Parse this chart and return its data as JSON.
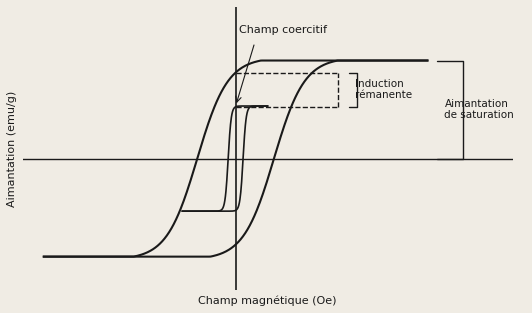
{
  "title": "",
  "xlabel": "Champ magnétique (Oe)",
  "ylabel": "Aimantation (emu/g)",
  "label_champ_coercitif": "Champ coercitif",
  "label_induction": "Induction\nrémanente",
  "label_aimantation": "Aimantation\nde saturation",
  "bg_color": "#f0ece4",
  "curve_color": "#1a1a1a",
  "xlim": [
    -10,
    13
  ],
  "ylim": [
    -1.3,
    1.5
  ]
}
